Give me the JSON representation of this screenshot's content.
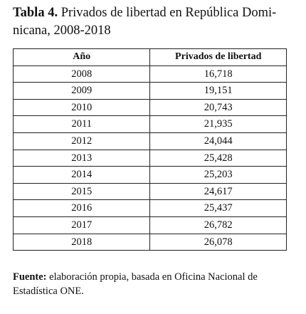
{
  "caption": {
    "label": "Tabla 4.",
    "title_line1": "Privados de libertad en República Domi-",
    "title_line2": "nicana, 2008-2018"
  },
  "table": {
    "headers": [
      "Año",
      "Privados de libertad"
    ],
    "rows": [
      [
        "2008",
        "16,718"
      ],
      [
        "2009",
        "19,151"
      ],
      [
        "2010",
        "20,743"
      ],
      [
        "2011",
        "21,935"
      ],
      [
        "2012",
        "24,044"
      ],
      [
        "2013",
        "25,428"
      ],
      [
        "2014",
        "25,203"
      ],
      [
        "2015",
        "24,617"
      ],
      [
        "2016",
        "25,437"
      ],
      [
        "2017",
        "26,782"
      ],
      [
        "2018",
        "26,078"
      ]
    ]
  },
  "source": {
    "label": "Fuente:",
    "text_line1": "elaboración propia, basada en Oficina Nacional de",
    "text_line2": "Estadística ONE."
  }
}
